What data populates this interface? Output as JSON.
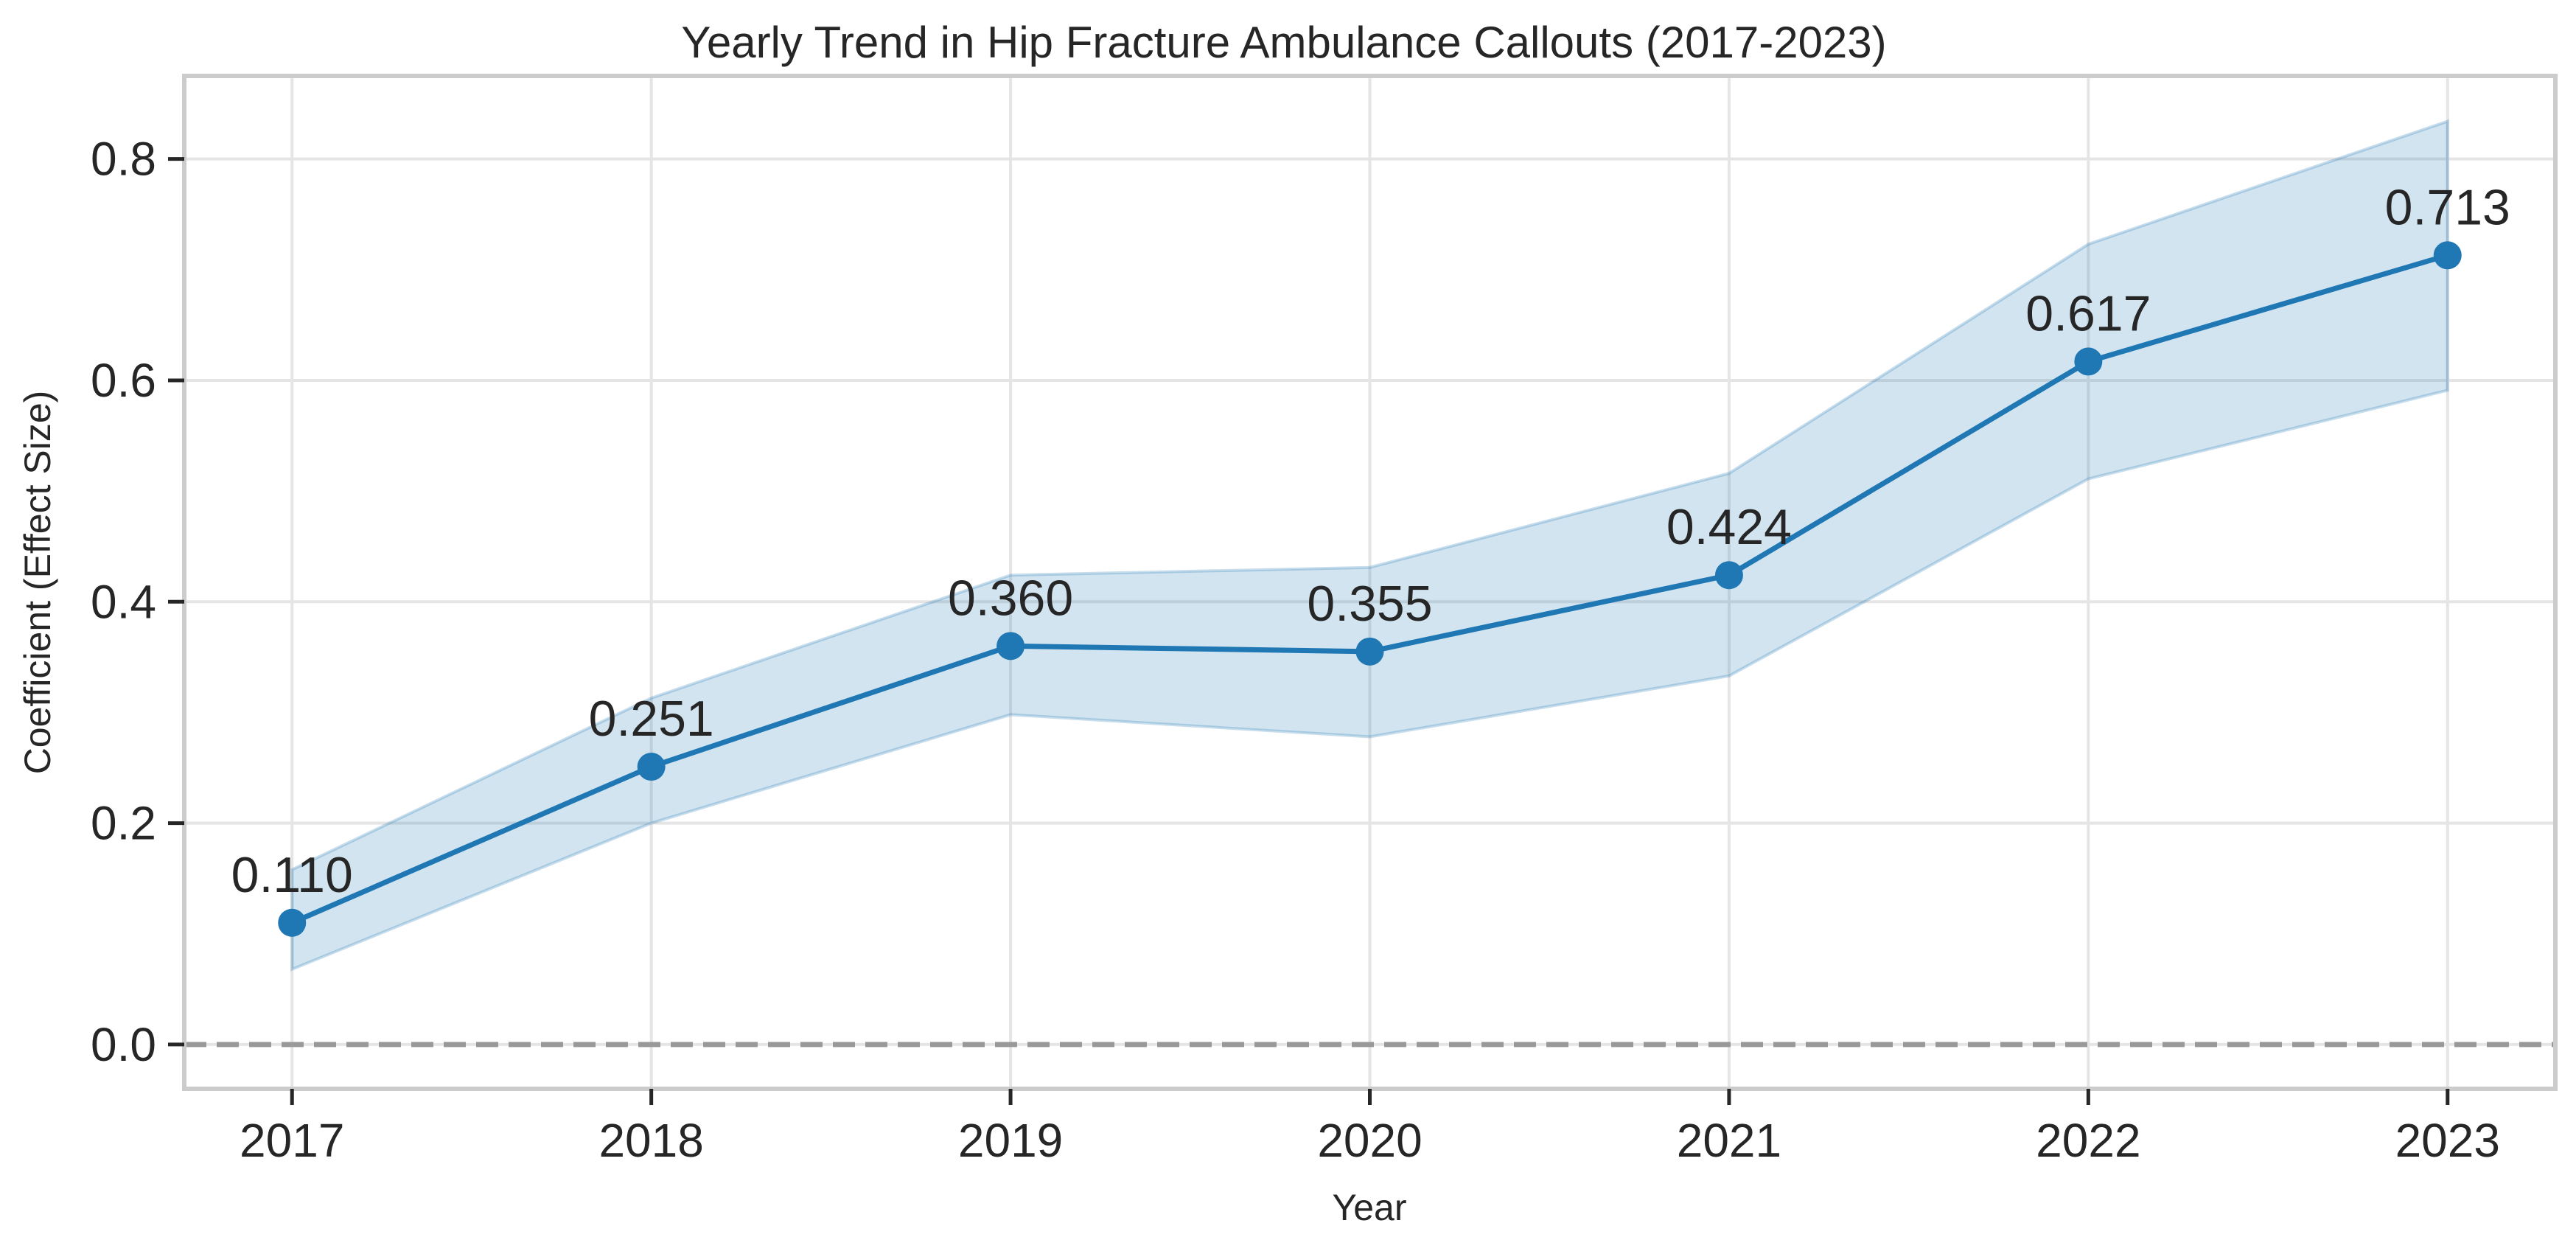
{
  "chart_data": {
    "type": "line",
    "title": "Yearly Trend in Hip Fracture Ambulance Callouts (2017-2023)",
    "xlabel": "Year",
    "ylabel": "Coefficient (Effect Size)",
    "x": [
      2017,
      2018,
      2019,
      2020,
      2021,
      2022,
      2023
    ],
    "x_tick_labels": [
      "2017",
      "2018",
      "2019",
      "2020",
      "2021",
      "2022",
      "2023"
    ],
    "series": [
      {
        "values": [
          0.11,
          0.251,
          0.36,
          0.355,
          0.424,
          0.617,
          0.713
        ],
        "ci_lower": [
          0.068,
          0.2,
          0.298,
          0.278,
          0.333,
          0.511,
          0.591
        ],
        "ci_upper": [
          0.158,
          0.313,
          0.424,
          0.431,
          0.516,
          0.723,
          0.834
        ],
        "data_labels": [
          "0.110",
          "0.251",
          "0.360",
          "0.355",
          "0.424",
          "0.617",
          "0.713"
        ]
      }
    ],
    "y_ticks": [
      0.0,
      0.2,
      0.4,
      0.6,
      0.8
    ],
    "y_tick_labels": [
      "0.0",
      "0.2",
      "0.4",
      "0.6",
      "0.8"
    ],
    "ylim": [
      -0.04,
      0.875
    ],
    "xlim": [
      2016.7,
      2023.3
    ],
    "reference_line": {
      "y": 0.0,
      "style": "dashed",
      "color": "#999999"
    },
    "grid": true,
    "colors": {
      "line": "#1f77b4",
      "band": "#1f77b4",
      "grid": "#e5e5e5",
      "frame": "#cccccc"
    }
  }
}
